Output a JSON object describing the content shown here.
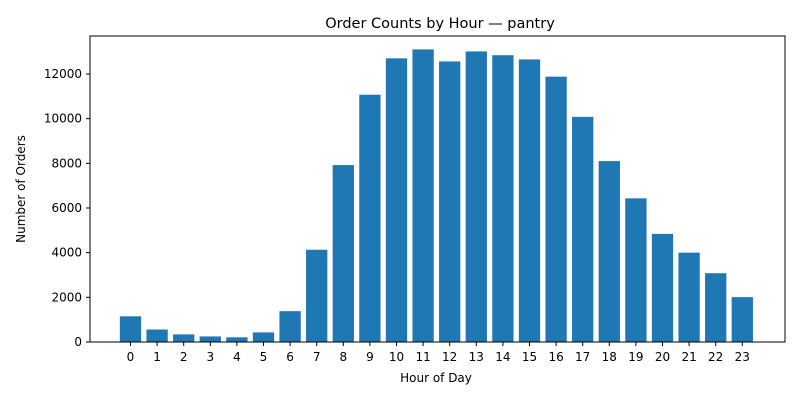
{
  "chart_data": {
    "type": "bar",
    "title": "Order Counts by Hour — pantry",
    "xlabel": "Hour of Day",
    "ylabel": "Number of Orders",
    "categories": [
      "0",
      "1",
      "2",
      "3",
      "4",
      "5",
      "6",
      "7",
      "8",
      "9",
      "10",
      "11",
      "12",
      "13",
      "14",
      "15",
      "16",
      "17",
      "18",
      "19",
      "20",
      "21",
      "22",
      "23"
    ],
    "values": [
      1150,
      560,
      340,
      250,
      210,
      430,
      1380,
      4130,
      7920,
      11070,
      12700,
      13100,
      12560,
      13010,
      12840,
      12650,
      11880,
      10080,
      8100,
      6430,
      4840,
      4000,
      3080,
      2010
    ],
    "yticks": [
      0,
      2000,
      4000,
      6000,
      8000,
      10000,
      12000
    ],
    "ylim": [
      0,
      13700
    ],
    "grid": false,
    "legend": "none",
    "bar_color": "#1f77b4"
  }
}
